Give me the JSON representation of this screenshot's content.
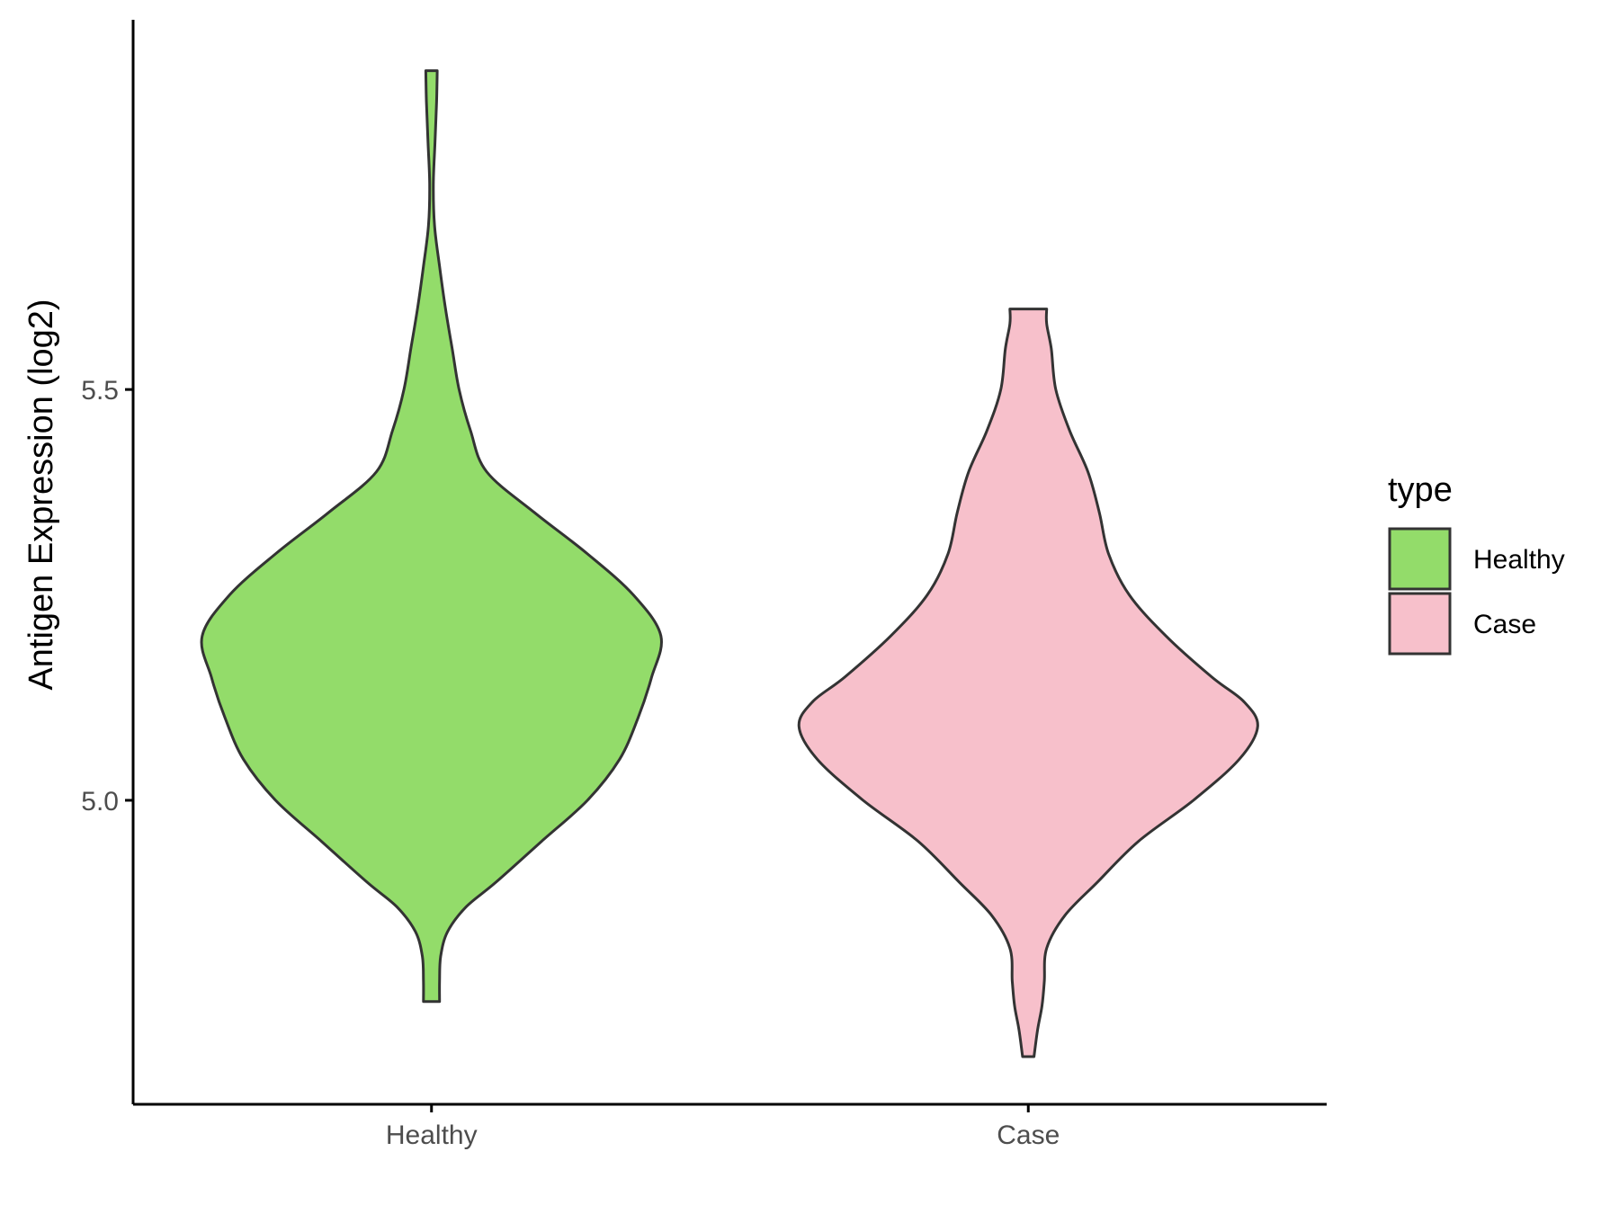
{
  "chart_data": {
    "type": "violin",
    "title": "",
    "xlabel": "",
    "ylabel": "Antigen Expression (log2)",
    "categories": [
      "Healthy",
      "Case"
    ],
    "ylim": [
      4.63,
      5.95
    ],
    "yticks": [
      5.0,
      5.5
    ],
    "ytick_labels": [
      "5.0",
      "5.5"
    ],
    "grid": false,
    "legend": {
      "title": "type",
      "placement": "right",
      "entries": [
        "Healthy",
        "Case"
      ]
    },
    "colors": {
      "Healthy": "#93dc6a",
      "Case": "#f7c0cb",
      "outline": "#333333",
      "axis": "#000000"
    },
    "series": [
      {
        "name": "Healthy",
        "min": 4.755,
        "max": 5.888,
        "profile": [
          [
            4.755,
            0.035
          ],
          [
            4.78,
            0.035
          ],
          [
            4.81,
            0.04
          ],
          [
            4.84,
            0.07
          ],
          [
            4.87,
            0.15
          ],
          [
            4.9,
            0.28
          ],
          [
            4.95,
            0.48
          ],
          [
            5.0,
            0.68
          ],
          [
            5.05,
            0.82
          ],
          [
            5.1,
            0.9
          ],
          [
            5.15,
            0.96
          ],
          [
            5.2,
            1.0
          ],
          [
            5.25,
            0.88
          ],
          [
            5.3,
            0.68
          ],
          [
            5.35,
            0.45
          ],
          [
            5.4,
            0.24
          ],
          [
            5.45,
            0.17
          ],
          [
            5.5,
            0.12
          ],
          [
            5.55,
            0.09
          ],
          [
            5.6,
            0.06
          ],
          [
            5.65,
            0.035
          ],
          [
            5.7,
            0.013
          ],
          [
            5.75,
            0.008
          ],
          [
            5.8,
            0.015
          ],
          [
            5.85,
            0.022
          ],
          [
            5.888,
            0.025
          ]
        ]
      },
      {
        "name": "Case",
        "min": 4.688,
        "max": 5.598,
        "profile": [
          [
            4.688,
            0.025
          ],
          [
            4.72,
            0.04
          ],
          [
            4.75,
            0.06
          ],
          [
            4.78,
            0.07
          ],
          [
            4.82,
            0.08
          ],
          [
            4.86,
            0.16
          ],
          [
            4.9,
            0.3
          ],
          [
            4.95,
            0.48
          ],
          [
            5.0,
            0.72
          ],
          [
            5.05,
            0.92
          ],
          [
            5.09,
            1.0
          ],
          [
            5.12,
            0.94
          ],
          [
            5.15,
            0.8
          ],
          [
            5.2,
            0.6
          ],
          [
            5.25,
            0.44
          ],
          [
            5.3,
            0.35
          ],
          [
            5.35,
            0.31
          ],
          [
            5.4,
            0.26
          ],
          [
            5.45,
            0.18
          ],
          [
            5.5,
            0.12
          ],
          [
            5.55,
            0.1
          ],
          [
            5.58,
            0.08
          ],
          [
            5.598,
            0.08
          ]
        ]
      }
    ]
  }
}
